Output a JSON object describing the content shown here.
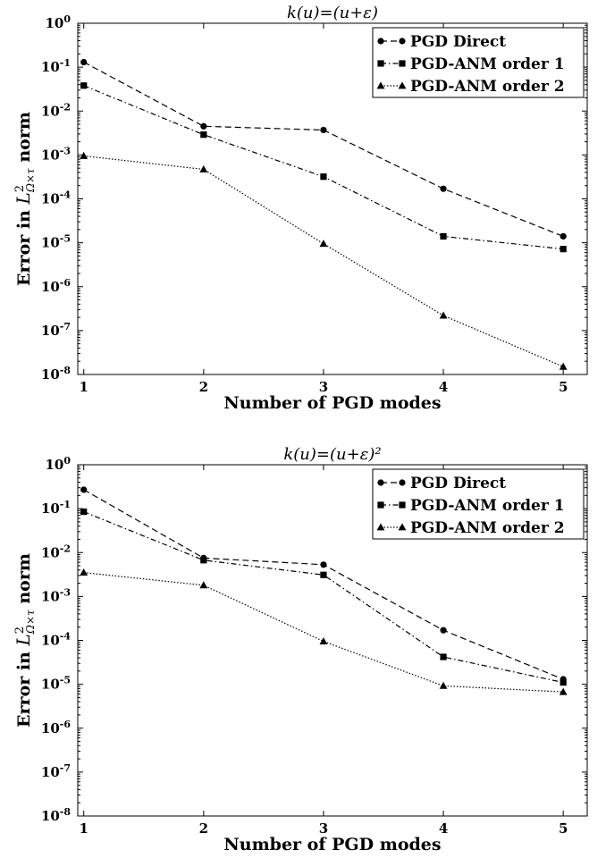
{
  "chart_data": [
    {
      "type": "line",
      "title": "k(u)=(u+ε)",
      "xlabel": "Number of PGD modes",
      "ylabel": "Error in L²Ω×τ norm",
      "yscale": "log",
      "x": [
        1,
        2,
        3,
        4,
        5
      ],
      "xlim": [
        0.95,
        5.2
      ],
      "ylim": [
        1e-08,
        1
      ],
      "ytick_labels": [
        "10-8",
        "10-7",
        "10-6",
        "10-5",
        "10-4",
        "10-3",
        "10-2",
        "10-1",
        "100"
      ],
      "legend_position": "top-right",
      "series": [
        {
          "name": "PGD Direct",
          "marker": "circle",
          "dash": "dashed",
          "values": [
            0.13,
            0.0045,
            0.0037,
            0.00017,
            1.4e-05
          ]
        },
        {
          "name": "PGD-ANM order 1",
          "marker": "square",
          "dash": "dashdot",
          "values": [
            0.038,
            0.0029,
            0.00032,
            1.4e-05,
            7.2e-06
          ]
        },
        {
          "name": "PGD-ANM order 2",
          "marker": "triangle",
          "dash": "dotted",
          "values": [
            0.00095,
            0.00047,
            9.5e-06,
            2.2e-07,
            1.5e-08
          ]
        }
      ]
    },
    {
      "type": "line",
      "title": "k(u)=(u+ε)²",
      "xlabel": "Number of PGD modes",
      "ylabel": "Error in L²Ω×τ norm",
      "yscale": "log",
      "x": [
        1,
        2,
        3,
        4,
        5
      ],
      "xlim": [
        0.95,
        5.2
      ],
      "ylim": [
        1e-08,
        1
      ],
      "ytick_labels": [
        "10-8",
        "10-7",
        "10-6",
        "10-5",
        "10-4",
        "10-3",
        "10-2",
        "10-1",
        "100"
      ],
      "legend_position": "top-right",
      "series": [
        {
          "name": "PGD Direct",
          "marker": "circle",
          "dash": "dashed",
          "values": [
            0.27,
            0.0075,
            0.0053,
            0.00017,
            1.3e-05
          ]
        },
        {
          "name": "PGD-ANM order 1",
          "marker": "square",
          "dash": "dashdot",
          "values": [
            0.085,
            0.0067,
            0.0031,
            4.2e-05,
            1.1e-05
          ]
        },
        {
          "name": "PGD-ANM order 2",
          "marker": "triangle",
          "dash": "dotted",
          "values": [
            0.0035,
            0.0018,
            9.5e-05,
            9.2e-06,
            6.7e-06
          ]
        }
      ]
    }
  ]
}
